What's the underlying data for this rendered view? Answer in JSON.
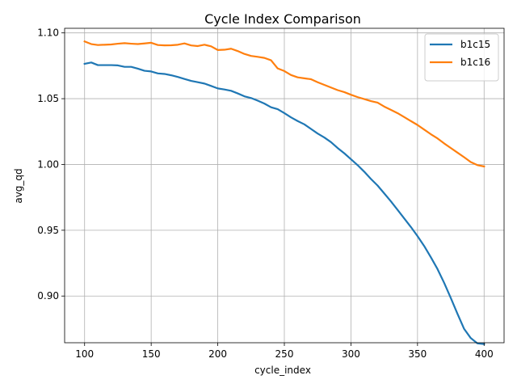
{
  "chart_data": {
    "type": "line",
    "title": "Cycle Index Comparison",
    "xlabel": "cycle_index",
    "ylabel": "avg_qd",
    "xlim": [
      85,
      415
    ],
    "ylim": [
      0.8645,
      1.1035
    ],
    "xticks": [
      100,
      150,
      200,
      250,
      300,
      350,
      400
    ],
    "xtick_labels": [
      "100",
      "150",
      "200",
      "250",
      "300",
      "350",
      "400"
    ],
    "yticks": [
      0.9,
      0.95,
      1.0,
      1.05,
      1.1
    ],
    "ytick_labels": [
      "0.90",
      "0.95",
      "1.00",
      "1.05",
      "1.10"
    ],
    "grid": true,
    "legend_position": "top-right",
    "series": [
      {
        "name": "b1c15",
        "color": "#1f77b4",
        "x": [
          100,
          105,
          110,
          115,
          120,
          125,
          130,
          135,
          140,
          145,
          150,
          155,
          160,
          165,
          170,
          175,
          180,
          185,
          190,
          195,
          200,
          205,
          210,
          215,
          220,
          225,
          230,
          235,
          240,
          245,
          250,
          255,
          260,
          265,
          270,
          275,
          280,
          285,
          290,
          295,
          300,
          305,
          310,
          315,
          320,
          325,
          330,
          335,
          340,
          345,
          350,
          355,
          360,
          365,
          370,
          375,
          380,
          385,
          390,
          395,
          400
        ],
        "y": [
          1.0765,
          1.0775,
          1.0755,
          1.0755,
          1.0755,
          1.0753,
          1.0742,
          1.0742,
          1.0728,
          1.0712,
          1.0707,
          1.0692,
          1.0688,
          1.0678,
          1.0665,
          1.065,
          1.0635,
          1.0625,
          1.0615,
          1.0597,
          1.0578,
          1.057,
          1.056,
          1.054,
          1.0518,
          1.0505,
          1.0485,
          1.0463,
          1.0435,
          1.042,
          1.039,
          1.0358,
          1.033,
          1.0305,
          1.027,
          1.0235,
          1.0205,
          1.017,
          1.0125,
          1.0085,
          1.004,
          0.9995,
          0.9945,
          0.989,
          0.984,
          0.978,
          0.972,
          0.9655,
          0.959,
          0.9525,
          0.9455,
          0.938,
          0.9295,
          0.9205,
          0.91,
          0.8985,
          0.8865,
          0.875,
          0.868,
          0.864,
          0.8635
        ]
      },
      {
        "name": "b1c16",
        "color": "#ff7f0e",
        "x": [
          100,
          105,
          110,
          115,
          120,
          125,
          130,
          135,
          140,
          145,
          150,
          155,
          160,
          165,
          170,
          175,
          180,
          185,
          190,
          195,
          200,
          205,
          210,
          215,
          220,
          225,
          230,
          235,
          240,
          245,
          250,
          255,
          260,
          265,
          270,
          275,
          280,
          285,
          290,
          295,
          300,
          305,
          310,
          315,
          320,
          325,
          330,
          335,
          340,
          345,
          350,
          355,
          360,
          365,
          370,
          375,
          380,
          385,
          390,
          395,
          400
        ],
        "y": [
          1.0935,
          1.0915,
          1.0908,
          1.091,
          1.0912,
          1.0918,
          1.0922,
          1.0918,
          1.0915,
          1.092,
          1.0925,
          1.0908,
          1.0905,
          1.0906,
          1.091,
          1.092,
          1.0905,
          1.09,
          1.091,
          1.0898,
          1.087,
          1.0872,
          1.088,
          1.0862,
          1.084,
          1.0825,
          1.0818,
          1.081,
          1.0792,
          1.073,
          1.071,
          1.068,
          1.0662,
          1.0655,
          1.0648,
          1.0625,
          1.0605,
          1.0585,
          1.0565,
          1.055,
          1.053,
          1.0512,
          1.0497,
          1.0482,
          1.047,
          1.044,
          1.0415,
          1.039,
          1.036,
          1.033,
          1.03,
          1.0265,
          1.023,
          1.0198,
          1.016,
          1.0125,
          1.009,
          1.0055,
          1.0018,
          0.9995,
          0.9985
        ]
      }
    ]
  }
}
